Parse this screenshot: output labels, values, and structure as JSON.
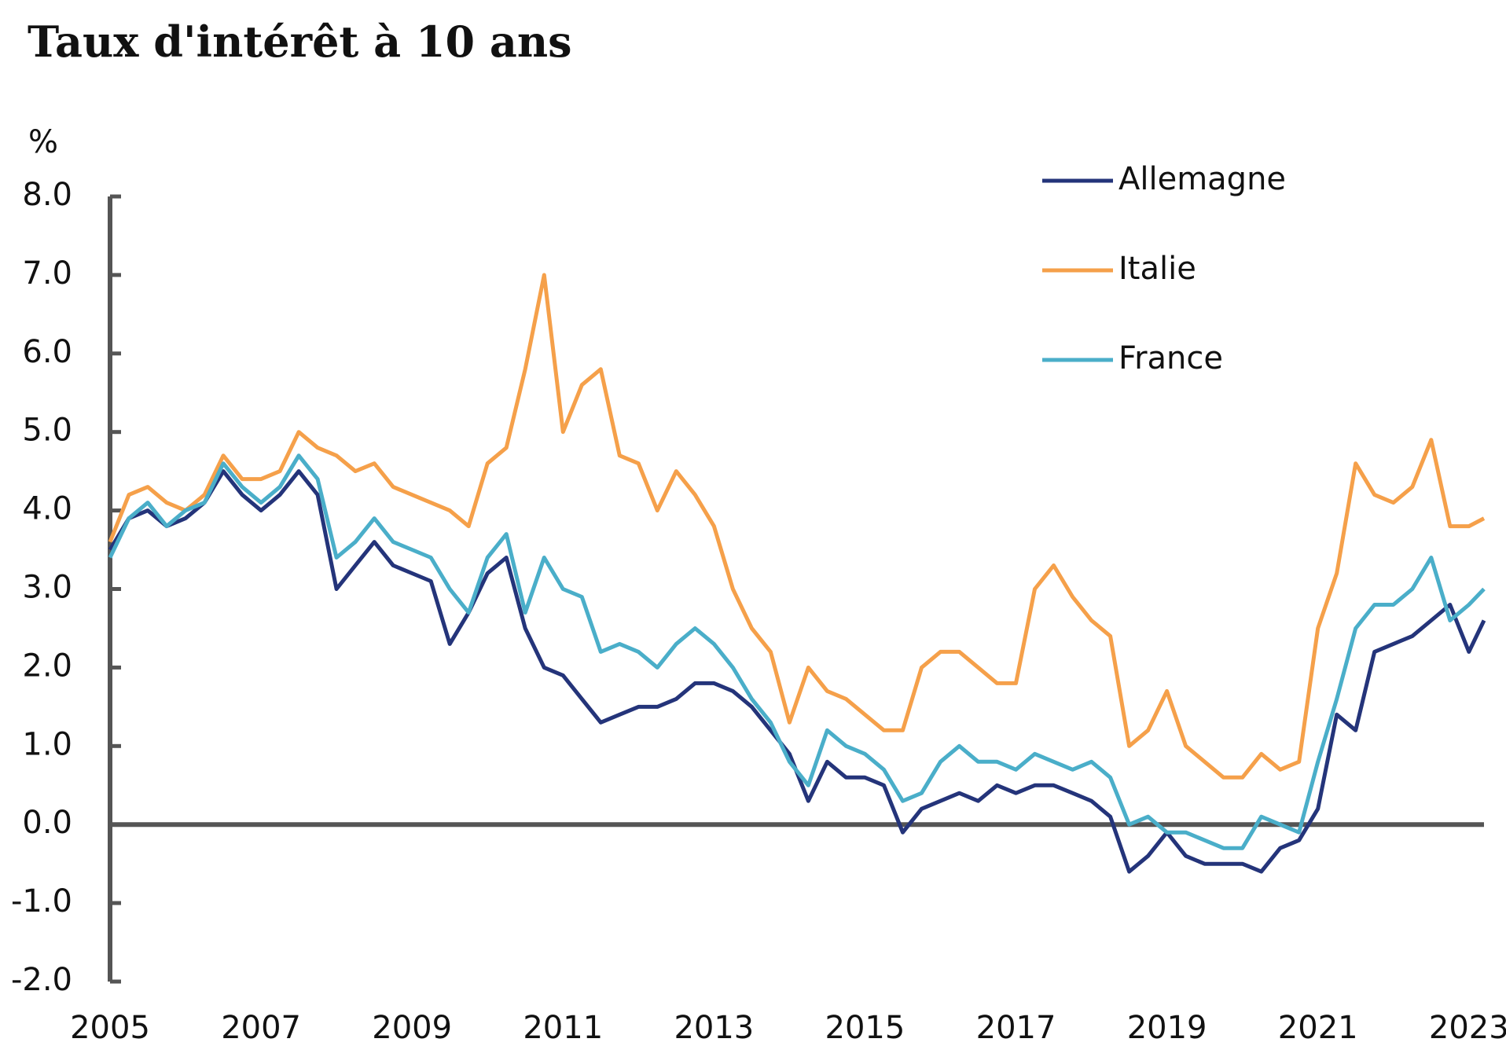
{
  "chart_data": {
    "type": "line",
    "title": "Taux d'intérêt à 10 ans",
    "ylabel": "%",
    "legend": "upper right",
    "x": [
      2005,
      2005.25,
      2005.5,
      2005.75,
      2006,
      2006.25,
      2006.5,
      2006.75,
      2007,
      2007.25,
      2007.5,
      2007.75,
      2008,
      2008.25,
      2008.5,
      2008.75,
      2009,
      2009.25,
      2009.5,
      2009.75,
      2010,
      2010.25,
      2010.5,
      2010.75,
      2011,
      2011.25,
      2011.5,
      2011.75,
      2012,
      2012.25,
      2012.5,
      2012.75,
      2013,
      2013.25,
      2013.5,
      2013.75,
      2014,
      2014.25,
      2014.5,
      2014.75,
      2015,
      2015.25,
      2015.5,
      2015.75,
      2016,
      2016.25,
      2016.5,
      2016.75,
      2017,
      2017.25,
      2017.5,
      2017.75,
      2018,
      2018.25,
      2018.5,
      2018.75,
      2019,
      2019.25,
      2019.5,
      2019.75,
      2020,
      2020.25,
      2020.5,
      2020.75,
      2021,
      2021.25,
      2021.5,
      2021.75,
      2022,
      2022.25,
      2022.5,
      2022.75,
      2023,
      2023.2
    ],
    "series": [
      {
        "name": "Allemagne",
        "color": "#24347a",
        "values": [
          3.5,
          3.9,
          4.0,
          3.8,
          3.9,
          4.1,
          4.5,
          4.2,
          4.0,
          4.2,
          4.5,
          4.2,
          3.0,
          3.3,
          3.6,
          3.3,
          3.2,
          3.1,
          2.3,
          2.7,
          3.2,
          3.4,
          2.5,
          2.0,
          1.9,
          1.6,
          1.3,
          1.4,
          1.5,
          1.5,
          1.6,
          1.8,
          1.8,
          1.7,
          1.5,
          1.2,
          0.9,
          0.3,
          0.8,
          0.6,
          0.6,
          0.5,
          -0.1,
          0.2,
          0.3,
          0.4,
          0.3,
          0.5,
          0.4,
          0.5,
          0.5,
          0.4,
          0.3,
          0.1,
          -0.6,
          -0.4,
          -0.1,
          -0.4,
          -0.5,
          -0.5,
          -0.5,
          -0.6,
          -0.3,
          -0.2,
          0.2,
          1.4,
          1.2,
          2.2,
          2.3,
          2.4,
          2.6,
          2.8,
          2.2,
          2.6
        ]
      },
      {
        "name": "Italie",
        "color": "#f5a04a",
        "values": [
          3.6,
          4.2,
          4.3,
          4.1,
          4.0,
          4.2,
          4.7,
          4.4,
          4.4,
          4.5,
          5.0,
          4.8,
          4.7,
          4.5,
          4.6,
          4.3,
          4.2,
          4.1,
          4.0,
          3.8,
          4.6,
          4.8,
          5.8,
          7.0,
          5.0,
          5.6,
          5.8,
          4.7,
          4.6,
          4.0,
          4.5,
          4.2,
          3.8,
          3.0,
          2.5,
          2.2,
          1.3,
          2.0,
          1.7,
          1.6,
          1.4,
          1.2,
          1.2,
          2.0,
          2.2,
          2.2,
          2.0,
          1.8,
          1.8,
          3.0,
          3.3,
          2.9,
          2.6,
          2.4,
          1.0,
          1.2,
          1.7,
          1.0,
          0.8,
          0.6,
          0.6,
          0.9,
          0.7,
          0.8,
          2.5,
          3.2,
          4.6,
          4.2,
          4.1,
          4.3,
          4.9,
          3.8,
          3.8,
          3.9
        ]
      },
      {
        "name": "France",
        "color": "#4aaec9",
        "values": [
          3.4,
          3.9,
          4.1,
          3.8,
          4.0,
          4.1,
          4.6,
          4.3,
          4.1,
          4.3,
          4.7,
          4.4,
          3.4,
          3.6,
          3.9,
          3.6,
          3.5,
          3.4,
          3.0,
          2.7,
          3.4,
          3.7,
          2.7,
          3.4,
          3.0,
          2.9,
          2.2,
          2.3,
          2.2,
          2.0,
          2.3,
          2.5,
          2.3,
          2.0,
          1.6,
          1.3,
          0.8,
          0.5,
          1.2,
          1.0,
          0.9,
          0.7,
          0.3,
          0.4,
          0.8,
          1.0,
          0.8,
          0.8,
          0.7,
          0.9,
          0.8,
          0.7,
          0.8,
          0.6,
          0.0,
          0.1,
          -0.1,
          -0.1,
          -0.2,
          -0.3,
          -0.3,
          0.1,
          0.0,
          -0.1,
          0.8,
          1.6,
          2.5,
          2.8,
          2.8,
          3.0,
          3.4,
          2.6,
          2.8,
          3.0
        ]
      }
    ],
    "xlim": [
      2005,
      2023.2
    ],
    "xticks": [
      2005,
      2007,
      2009,
      2011,
      2013,
      2015,
      2017,
      2019,
      2021,
      2023
    ],
    "ylim": [
      -2,
      8
    ],
    "yticks": [
      {
        "value": 8,
        "label": "8.0"
      },
      {
        "value": 7,
        "label": "7.0"
      },
      {
        "value": 6,
        "label": "6.0"
      },
      {
        "value": 5,
        "label": "5.0"
      },
      {
        "value": 4,
        "label": "4.0"
      },
      {
        "value": 3,
        "label": "3.0"
      },
      {
        "value": 2,
        "label": "2.0"
      },
      {
        "value": 1,
        "label": "1.0"
      },
      {
        "value": 0,
        "label": "0.0"
      },
      {
        "value": -1,
        "label": "-1.0"
      },
      {
        "value": -2,
        "label": "-2.0"
      }
    ]
  }
}
